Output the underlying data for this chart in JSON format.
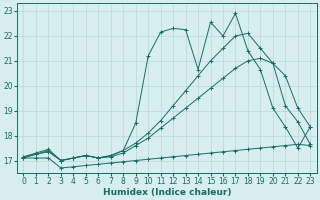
{
  "background_color": "#d6eef0",
  "grid_color": "#b8d8dc",
  "line_color": "#1a6b62",
  "xlim": [
    -0.5,
    23.5
  ],
  "ylim": [
    16.5,
    23.3
  ],
  "xlabel": "Humidex (Indice chaleur)",
  "xlabel_fontsize": 6.5,
  "xticks": [
    0,
    1,
    2,
    3,
    4,
    5,
    6,
    7,
    8,
    9,
    10,
    11,
    12,
    13,
    14,
    15,
    16,
    17,
    18,
    19,
    20,
    21,
    22,
    23
  ],
  "yticks": [
    17,
    18,
    19,
    20,
    21,
    22,
    23
  ],
  "tick_fontsize": 5.5,
  "series": [
    {
      "x": [
        0,
        1,
        2,
        3,
        4,
        5,
        6,
        7,
        8,
        9,
        10,
        11,
        12,
        13,
        14,
        15,
        16,
        17,
        18,
        19,
        20,
        21,
        22,
        23
      ],
      "y": [
        17.1,
        17.1,
        17.1,
        16.7,
        16.75,
        16.8,
        16.85,
        16.9,
        16.95,
        17.0,
        17.05,
        17.1,
        17.15,
        17.2,
        17.25,
        17.3,
        17.35,
        17.4,
        17.45,
        17.5,
        17.55,
        17.6,
        17.65,
        17.6
      ]
    },
    {
      "x": [
        0,
        1,
        2,
        3,
        4,
        5,
        6,
        7,
        8,
        9,
        10,
        11,
        12,
        13,
        14,
        15,
        16,
        17,
        18,
        19,
        20,
        21,
        22,
        23
      ],
      "y": [
        17.15,
        17.25,
        17.35,
        17.0,
        17.1,
        17.2,
        17.1,
        17.15,
        17.3,
        17.6,
        17.9,
        18.3,
        18.7,
        19.1,
        19.5,
        19.9,
        20.3,
        20.7,
        21.0,
        21.1,
        20.9,
        20.4,
        19.1,
        18.35
      ]
    },
    {
      "x": [
        0,
        1,
        2,
        3,
        4,
        5,
        6,
        7,
        8,
        9,
        10,
        11,
        12,
        13,
        14,
        15,
        16,
        17,
        18,
        19,
        20,
        21,
        22,
        23
      ],
      "y": [
        17.15,
        17.3,
        17.45,
        17.0,
        17.1,
        17.2,
        17.1,
        17.2,
        17.4,
        17.7,
        18.1,
        18.6,
        19.2,
        19.8,
        20.4,
        21.0,
        21.5,
        22.0,
        22.1,
        21.5,
        20.9,
        19.2,
        18.55,
        17.65
      ]
    },
    {
      "x": [
        0,
        1,
        2,
        3,
        4,
        5,
        6,
        7,
        8,
        9,
        10,
        11,
        12,
        13,
        14,
        15,
        16,
        17,
        18,
        19,
        20,
        21,
        22,
        23
      ],
      "y": [
        17.1,
        17.25,
        17.4,
        17.0,
        17.1,
        17.2,
        17.1,
        17.2,
        17.4,
        18.5,
        21.2,
        22.15,
        22.3,
        22.25,
        20.65,
        22.55,
        22.0,
        22.9,
        21.4,
        20.65,
        19.1,
        18.35,
        17.5,
        18.35
      ]
    }
  ]
}
